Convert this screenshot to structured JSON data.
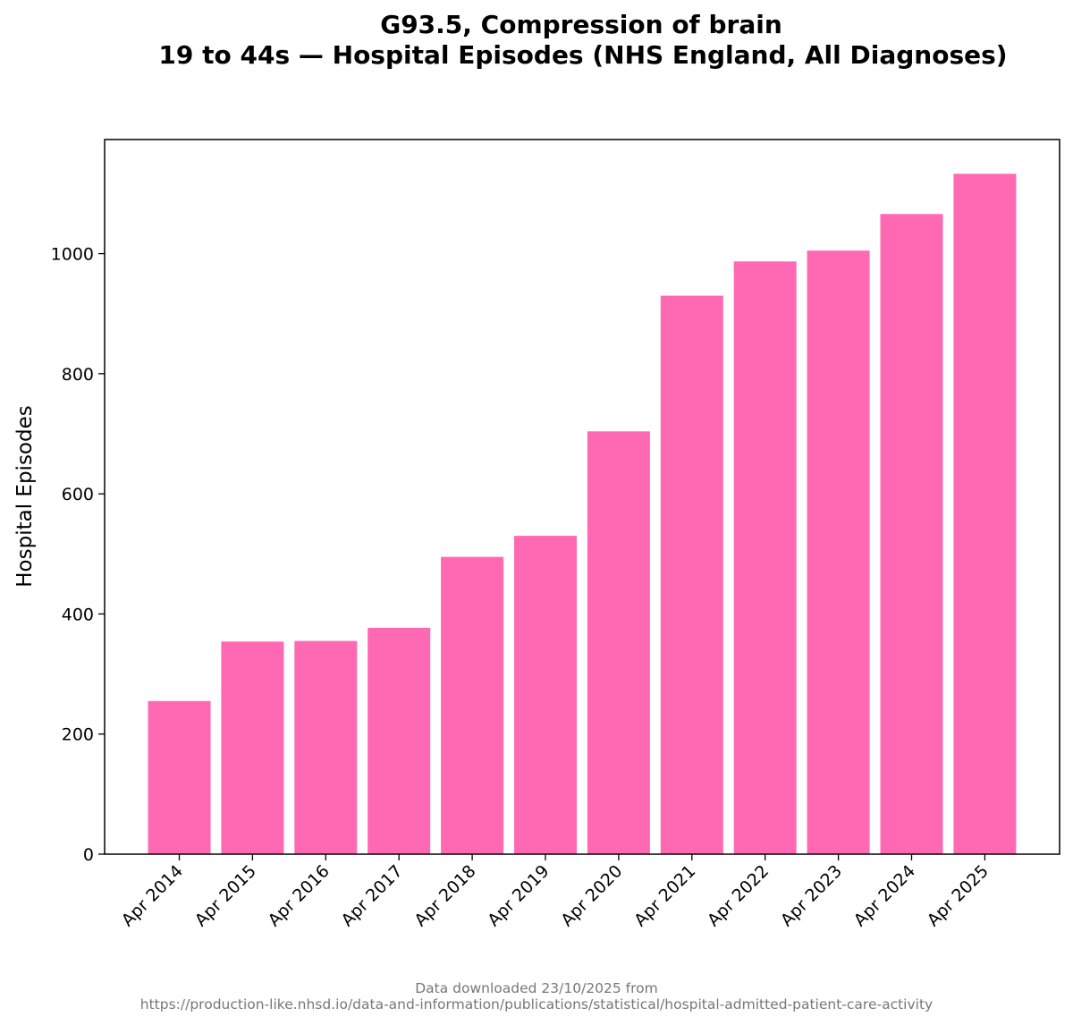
{
  "chart_data": {
    "type": "bar",
    "title_line1": "G93.5, Compression of brain",
    "title_line2": "19 to 44s — Hospital Episodes (NHS England, All Diagnoses)",
    "xlabel": "",
    "ylabel": "Hospital Episodes",
    "categories": [
      "Apr 2014",
      "Apr 2015",
      "Apr 2016",
      "Apr 2017",
      "Apr 2018",
      "Apr 2019",
      "Apr 2020",
      "Apr 2021",
      "Apr 2022",
      "Apr 2023",
      "Apr 2024",
      "Apr 2025"
    ],
    "values": [
      255,
      354,
      355,
      377,
      495,
      530,
      704,
      930,
      987,
      1005,
      1066,
      1133
    ],
    "ylim": [
      0,
      1190
    ],
    "yticks": [
      0,
      200,
      400,
      600,
      800,
      1000
    ],
    "bar_color": "#ff69b4",
    "grid": false,
    "legend": "none"
  },
  "footer": {
    "line1": "Data downloaded 23/10/2025 from",
    "line2": "https://production-like.nhsd.io/data-and-information/publications/statistical/hospital-admitted-patient-care-activity"
  }
}
